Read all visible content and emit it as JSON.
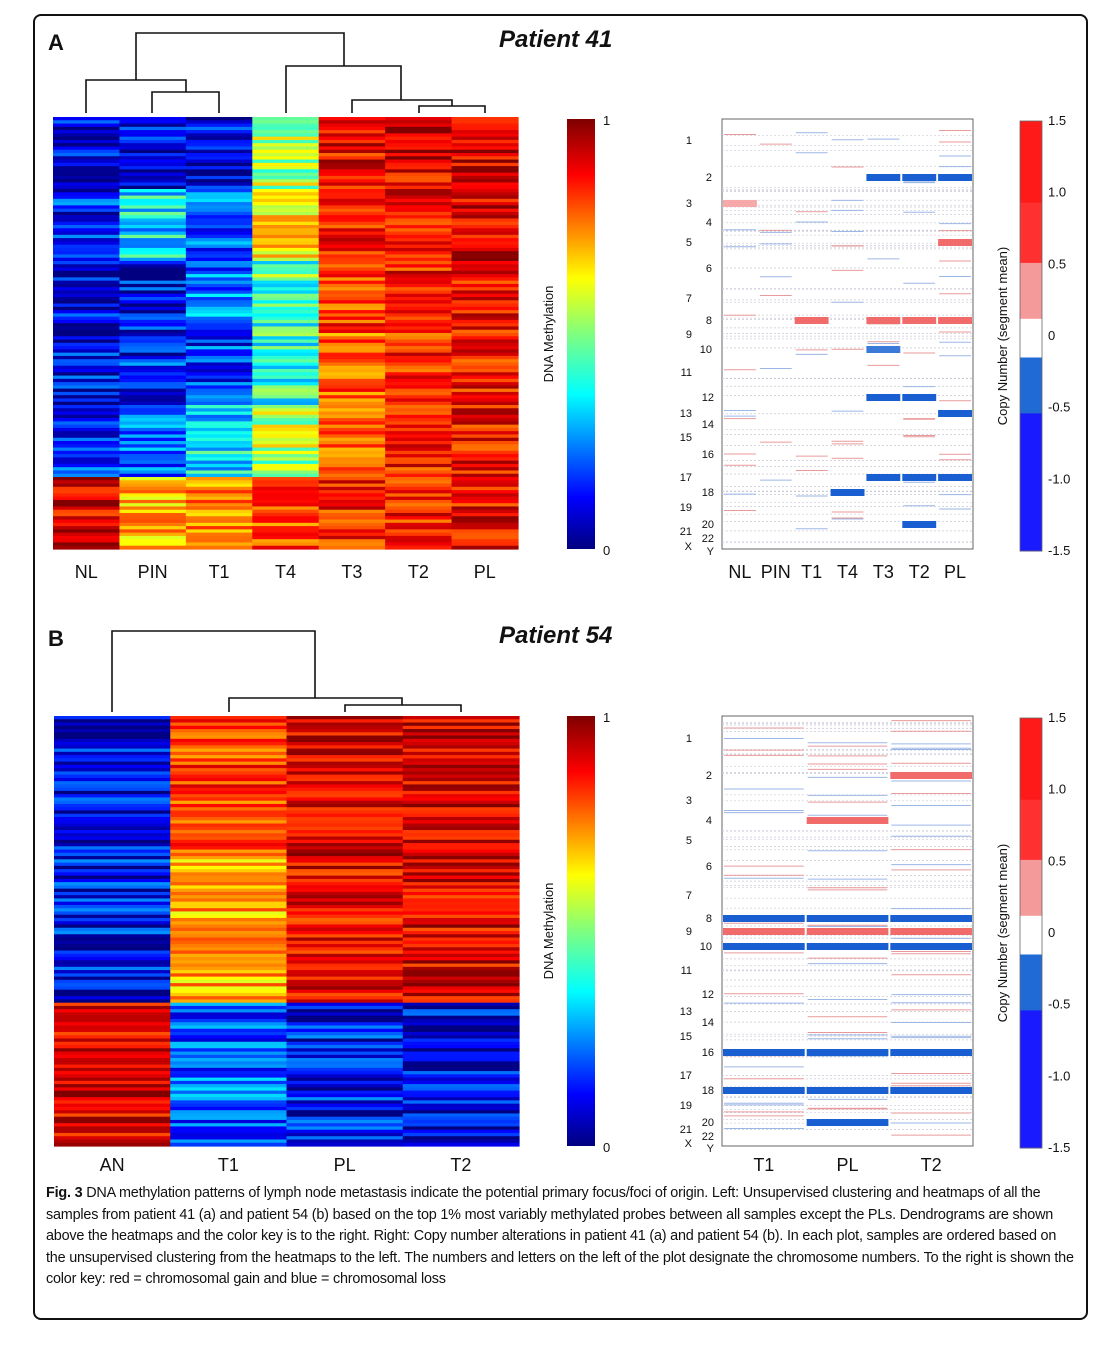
{
  "panels": [
    {
      "letter": "A",
      "title": "Patient 41",
      "heatmap": {
        "samples": [
          "NL",
          "PIN",
          "T1",
          "T4",
          "T3",
          "T2",
          "PL"
        ],
        "colorbar_label": "DNA Methylation",
        "colorbar_ticks": [
          "0",
          "1"
        ],
        "dendrogram": "((NL,(PIN,T1)),(T4,(T3,(T2,PL))))"
      },
      "cnv": {
        "samples": [
          "NL",
          "PIN",
          "T1",
          "T4",
          "T3",
          "T2",
          "PL"
        ],
        "chromosomes_left": [
          "1",
          "2",
          "3",
          "4",
          "5",
          "6",
          "7",
          "8",
          "9",
          "10",
          "11",
          "12",
          "13",
          "14",
          "15",
          "16",
          "17",
          "18",
          "19",
          "20",
          "21",
          "22",
          "X",
          "Y"
        ],
        "colorbar_label": "Copy Number (segment mean)",
        "colorbar_ticks": [
          "1.5",
          "1.0",
          "0.5",
          "0",
          "-0.5",
          "-1.0",
          "-1.5"
        ]
      }
    },
    {
      "letter": "B",
      "title": "Patient 54",
      "heatmap": {
        "samples": [
          "AN",
          "T1",
          "PL",
          "T2"
        ],
        "colorbar_label": "DNA Methylation",
        "colorbar_ticks": [
          "0",
          "1"
        ],
        "dendrogram": "(AN,(T1,(PL,T2)))"
      },
      "cnv": {
        "samples": [
          "T1",
          "PL",
          "T2"
        ],
        "chromosomes_left": [
          "1",
          "2",
          "3",
          "4",
          "5",
          "6",
          "7",
          "8",
          "9",
          "10",
          "11",
          "12",
          "13",
          "14",
          "15",
          "16",
          "17",
          "18",
          "19",
          "20",
          "21",
          "22",
          "X",
          "Y"
        ],
        "colorbar_label": "Copy Number (segment mean)",
        "colorbar_ticks": [
          "1.5",
          "1.0",
          "0.5",
          "0",
          "-0.5",
          "-1.0",
          "-1.5"
        ]
      }
    }
  ],
  "chart_data": [
    {
      "type": "heatmap",
      "title": "Patient 41",
      "subtitle": "DNA methylation, top 1% most variably methylated probes",
      "columns": [
        "NL",
        "PIN",
        "T1",
        "T4",
        "T3",
        "T2",
        "PL"
      ],
      "row_groups": 6,
      "values": [
        [
          0.12,
          0.1,
          0.1,
          0.55,
          0.88,
          0.9,
          0.92
        ],
        [
          0.15,
          0.35,
          0.2,
          0.65,
          0.85,
          0.88,
          0.9
        ],
        [
          0.1,
          0.12,
          0.25,
          0.45,
          0.82,
          0.86,
          0.88
        ],
        [
          0.12,
          0.15,
          0.18,
          0.4,
          0.78,
          0.84,
          0.86
        ],
        [
          0.15,
          0.2,
          0.35,
          0.55,
          0.8,
          0.85,
          0.87
        ],
        [
          0.9,
          0.7,
          0.75,
          0.8,
          0.85,
          0.85,
          0.88
        ]
      ],
      "color_scale": {
        "min": 0,
        "max": 1,
        "palette": "jet"
      },
      "xlabel": "",
      "ylabel": ""
    },
    {
      "type": "heatmap",
      "title": "Patient 41",
      "subtitle": "Copy number alterations",
      "columns": [
        "NL",
        "PIN",
        "T1",
        "T4",
        "T3",
        "T2",
        "PL"
      ],
      "rows": [
        "1",
        "2",
        "3",
        "4",
        "5",
        "6",
        "7",
        "8",
        "9",
        "10",
        "11",
        "12",
        "13",
        "14",
        "15",
        "16",
        "17",
        "18",
        "19",
        "20",
        "21",
        "22",
        "X",
        "Y"
      ],
      "segments": [
        {
          "sample": "T3",
          "chrom": "2",
          "value": -1.0
        },
        {
          "sample": "T2",
          "chrom": "2",
          "value": -1.0
        },
        {
          "sample": "PL",
          "chrom": "2",
          "value": -1.0
        },
        {
          "sample": "PL",
          "chrom": "5",
          "value": 0.5
        },
        {
          "sample": "T3",
          "chrom": "8",
          "value": 0.5
        },
        {
          "sample": "T2",
          "chrom": "8",
          "value": 0.5
        },
        {
          "sample": "PL",
          "chrom": "8",
          "value": 0.5
        },
        {
          "sample": "T1",
          "chrom": "8",
          "value": 0.5
        },
        {
          "sample": "T3",
          "chrom": "10",
          "value": -0.5
        },
        {
          "sample": "T3",
          "chrom": "12",
          "value": -1.0
        },
        {
          "sample": "T2",
          "chrom": "12",
          "value": -1.0
        },
        {
          "sample": "PL",
          "chrom": "13",
          "value": -1.0
        },
        {
          "sample": "T3",
          "chrom": "17",
          "value": -1.0
        },
        {
          "sample": "T2",
          "chrom": "17",
          "value": -1.0
        },
        {
          "sample": "PL",
          "chrom": "17",
          "value": -1.0
        },
        {
          "sample": "T4",
          "chrom": "18",
          "value": -1.0
        },
        {
          "sample": "T2",
          "chrom": "20",
          "value": -1.0
        },
        {
          "sample": "NL",
          "chrom": "3",
          "value": 0.3
        }
      ],
      "color_scale": {
        "min": -1.5,
        "max": 1.5,
        "low": "blue",
        "high": "red"
      }
    },
    {
      "type": "heatmap",
      "title": "Patient 54",
      "subtitle": "DNA methylation, top 1% most variably methylated probes",
      "columns": [
        "AN",
        "T1",
        "PL",
        "T2"
      ],
      "row_groups": 3,
      "values": [
        [
          0.1,
          0.82,
          0.9,
          0.92
        ],
        [
          0.12,
          0.7,
          0.88,
          0.9
        ],
        [
          0.9,
          0.2,
          0.12,
          0.1
        ]
      ],
      "color_scale": {
        "min": 0,
        "max": 1,
        "palette": "jet"
      },
      "xlabel": "",
      "ylabel": ""
    },
    {
      "type": "heatmap",
      "title": "Patient 54",
      "subtitle": "Copy number alterations",
      "columns": [
        "T1",
        "PL",
        "T2"
      ],
      "rows": [
        "1",
        "2",
        "3",
        "4",
        "5",
        "6",
        "7",
        "8",
        "9",
        "10",
        "11",
        "12",
        "13",
        "14",
        "15",
        "16",
        "17",
        "18",
        "19",
        "20",
        "21",
        "22",
        "X",
        "Y"
      ],
      "segments": [
        {
          "sample": "T2",
          "chrom": "2",
          "value": 0.8
        },
        {
          "sample": "PL",
          "chrom": "4",
          "value": 0.5
        },
        {
          "sample": "T1",
          "chrom": "8",
          "value": -1.0
        },
        {
          "sample": "PL",
          "chrom": "8",
          "value": -1.0
        },
        {
          "sample": "T2",
          "chrom": "8",
          "value": -1.0
        },
        {
          "sample": "T1",
          "chrom": "9",
          "value": 0.5
        },
        {
          "sample": "PL",
          "chrom": "9",
          "value": 0.5
        },
        {
          "sample": "T2",
          "chrom": "9",
          "value": 0.5
        },
        {
          "sample": "T1",
          "chrom": "10",
          "value": -1.0
        },
        {
          "sample": "PL",
          "chrom": "10",
          "value": -1.0
        },
        {
          "sample": "T2",
          "chrom": "10",
          "value": -1.0
        },
        {
          "sample": "T1",
          "chrom": "16",
          "value": -1.0
        },
        {
          "sample": "PL",
          "chrom": "16",
          "value": -1.0
        },
        {
          "sample": "T2",
          "chrom": "16",
          "value": -1.0
        },
        {
          "sample": "T1",
          "chrom": "18",
          "value": -1.0
        },
        {
          "sample": "PL",
          "chrom": "18",
          "value": -1.0
        },
        {
          "sample": "T2",
          "chrom": "18",
          "value": -1.0
        },
        {
          "sample": "PL",
          "chrom": "20",
          "value": -1.0
        }
      ],
      "color_scale": {
        "min": -1.5,
        "max": 1.5,
        "low": "blue",
        "high": "red"
      }
    }
  ],
  "caption": {
    "fig_label": "Fig. 3",
    "text": "DNA methylation patterns of lymph node metastasis indicate the potential primary focus/foci of origin. Left: Unsupervised clustering and heatmaps of all the samples from patient 41 (a) and patient 54 (b) based on the top 1% most variably methylated probes between all samples except the PLs. Dendrograms are shown above the heatmaps and the color key is to the right. Right: Copy number alterations in patient 41 (a) and patient 54 (b). In each plot, samples are ordered based on the unsupervised clustering from the heatmaps to the left. The numbers and letters on the left of the plot designate the chromosome numbers. To the right is shown the color key: red = chromosomal gain and blue = chromosomal loss"
  }
}
